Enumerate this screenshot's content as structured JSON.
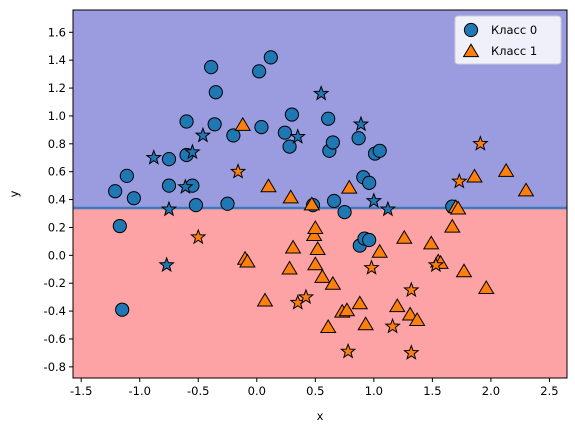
{
  "chart_data": {
    "type": "scatter",
    "xlabel": "x",
    "ylabel": "y",
    "xlim": [
      -1.57,
      2.65
    ],
    "ylim": [
      -0.88,
      1.76
    ],
    "xticks": [
      "-1.5",
      "-1.0",
      "-0.5",
      "0.0",
      "0.5",
      "1.0",
      "1.5",
      "2.0",
      "2.5"
    ],
    "xtick_values": [
      -1.5,
      -1.0,
      -0.5,
      0.0,
      0.5,
      1.0,
      1.5,
      2.0,
      2.5
    ],
    "yticks": [
      "-0.8",
      "-0.6",
      "-0.4",
      "-0.2",
      "0.0",
      "0.2",
      "0.4",
      "0.6",
      "0.8",
      "1.0",
      "1.2",
      "1.4",
      "1.6"
    ],
    "ytick_values": [
      -0.8,
      -0.6,
      -0.4,
      -0.2,
      0.0,
      0.2,
      0.4,
      0.6,
      0.8,
      1.0,
      1.2,
      1.4,
      1.6
    ],
    "decision_boundary_y": 0.34,
    "region_colors": {
      "upper": "#9b9ce0",
      "lower": "#fda3a5"
    },
    "boundary_color": "#3a7bbf",
    "legend": {
      "position": "upper right",
      "entries": [
        {
          "label": "Класс 0",
          "marker": "circle",
          "color": "#1f77b4"
        },
        {
          "label": "Класс 1",
          "marker": "triangle",
          "color": "#ff7f0e"
        }
      ]
    },
    "series": [
      {
        "name": "Класс 0",
        "marker": "circle",
        "color": "#1f77b4",
        "points": [
          [
            -1.21,
            0.46
          ],
          [
            -1.11,
            0.57
          ],
          [
            -1.05,
            0.41
          ],
          [
            -1.17,
            0.21
          ],
          [
            -1.15,
            -0.39
          ],
          [
            -0.75,
            0.69
          ],
          [
            -0.75,
            0.5
          ],
          [
            -0.6,
            0.72
          ],
          [
            -0.55,
            0.5
          ],
          [
            -0.6,
            0.96
          ],
          [
            -0.52,
            0.36
          ],
          [
            -0.39,
            1.35
          ],
          [
            -0.36,
            0.94
          ],
          [
            -0.35,
            1.17
          ],
          [
            -0.25,
            0.37
          ],
          [
            -0.2,
            0.86
          ],
          [
            0.02,
            1.32
          ],
          [
            0.04,
            0.92
          ],
          [
            0.12,
            1.42
          ],
          [
            0.24,
            0.88
          ],
          [
            0.28,
            0.78
          ],
          [
            0.3,
            1.01
          ],
          [
            0.48,
            0.36
          ],
          [
            0.61,
            0.98
          ],
          [
            0.62,
            0.75
          ],
          [
            0.65,
            0.81
          ],
          [
            0.66,
            0.39
          ],
          [
            0.75,
            0.31
          ],
          [
            0.87,
            0.84
          ],
          [
            0.88,
            0.07
          ],
          [
            0.91,
            0.56
          ],
          [
            0.92,
            0.12
          ],
          [
            0.96,
            0.52
          ],
          [
            0.96,
            0.11
          ],
          [
            1.01,
            0.73
          ],
          [
            1.05,
            0.75
          ],
          [
            1.67,
            0.35
          ]
        ]
      },
      {
        "name": "Класс 1",
        "marker": "triangle",
        "color": "#ff7f0e",
        "points": [
          [
            -0.12,
            0.93
          ],
          [
            -0.1,
            -0.03
          ],
          [
            -0.08,
            -0.05
          ],
          [
            0.07,
            -0.33
          ],
          [
            0.1,
            0.49
          ],
          [
            0.28,
            -0.1
          ],
          [
            0.29,
            0.41
          ],
          [
            0.31,
            0.05
          ],
          [
            0.47,
            0.36
          ],
          [
            0.49,
            0.14
          ],
          [
            0.5,
            0.19
          ],
          [
            0.5,
            -0.07
          ],
          [
            0.52,
            0.04
          ],
          [
            0.56,
            -0.16
          ],
          [
            0.61,
            -0.52
          ],
          [
            0.65,
            -0.21
          ],
          [
            0.73,
            -0.41
          ],
          [
            0.77,
            -0.4
          ],
          [
            0.79,
            0.48
          ],
          [
            0.88,
            -0.35
          ],
          [
            0.93,
            -0.5
          ],
          [
            1.05,
            0.02
          ],
          [
            1.2,
            -0.37
          ],
          [
            1.26,
            0.12
          ],
          [
            1.31,
            -0.43
          ],
          [
            1.37,
            -0.47
          ],
          [
            1.49,
            0.08
          ],
          [
            1.55,
            -0.05
          ],
          [
            1.57,
            -0.06
          ],
          [
            1.67,
            0.2
          ],
          [
            1.7,
            0.34
          ],
          [
            1.72,
            0.33
          ],
          [
            1.77,
            -0.12
          ],
          [
            1.86,
            0.56
          ],
          [
            1.96,
            -0.24
          ],
          [
            2.13,
            0.6
          ],
          [
            2.3,
            0.46
          ]
        ]
      },
      {
        "name": "",
        "marker": "star",
        "color": "#1f77b4",
        "points": [
          [
            -0.88,
            0.7
          ],
          [
            -0.75,
            0.33
          ],
          [
            -0.77,
            -0.07
          ],
          [
            -0.61,
            0.49
          ],
          [
            -0.55,
            0.74
          ],
          [
            -0.46,
            0.86
          ],
          [
            0.35,
            0.85
          ],
          [
            0.55,
            1.16
          ],
          [
            0.89,
            0.94
          ],
          [
            1.0,
            0.39
          ],
          [
            1.12,
            0.33
          ]
        ]
      },
      {
        "name": "",
        "marker": "star",
        "color": "#ff7f0e",
        "points": [
          [
            -0.5,
            0.13
          ],
          [
            -0.16,
            0.6
          ],
          [
            0.35,
            -0.34
          ],
          [
            0.42,
            -0.3
          ],
          [
            0.78,
            -0.69
          ],
          [
            0.98,
            -0.09
          ],
          [
            1.16,
            -0.51
          ],
          [
            1.32,
            -0.25
          ],
          [
            1.32,
            -0.7
          ],
          [
            1.53,
            -0.07
          ],
          [
            1.73,
            0.53
          ],
          [
            1.91,
            0.8
          ]
        ]
      }
    ]
  }
}
